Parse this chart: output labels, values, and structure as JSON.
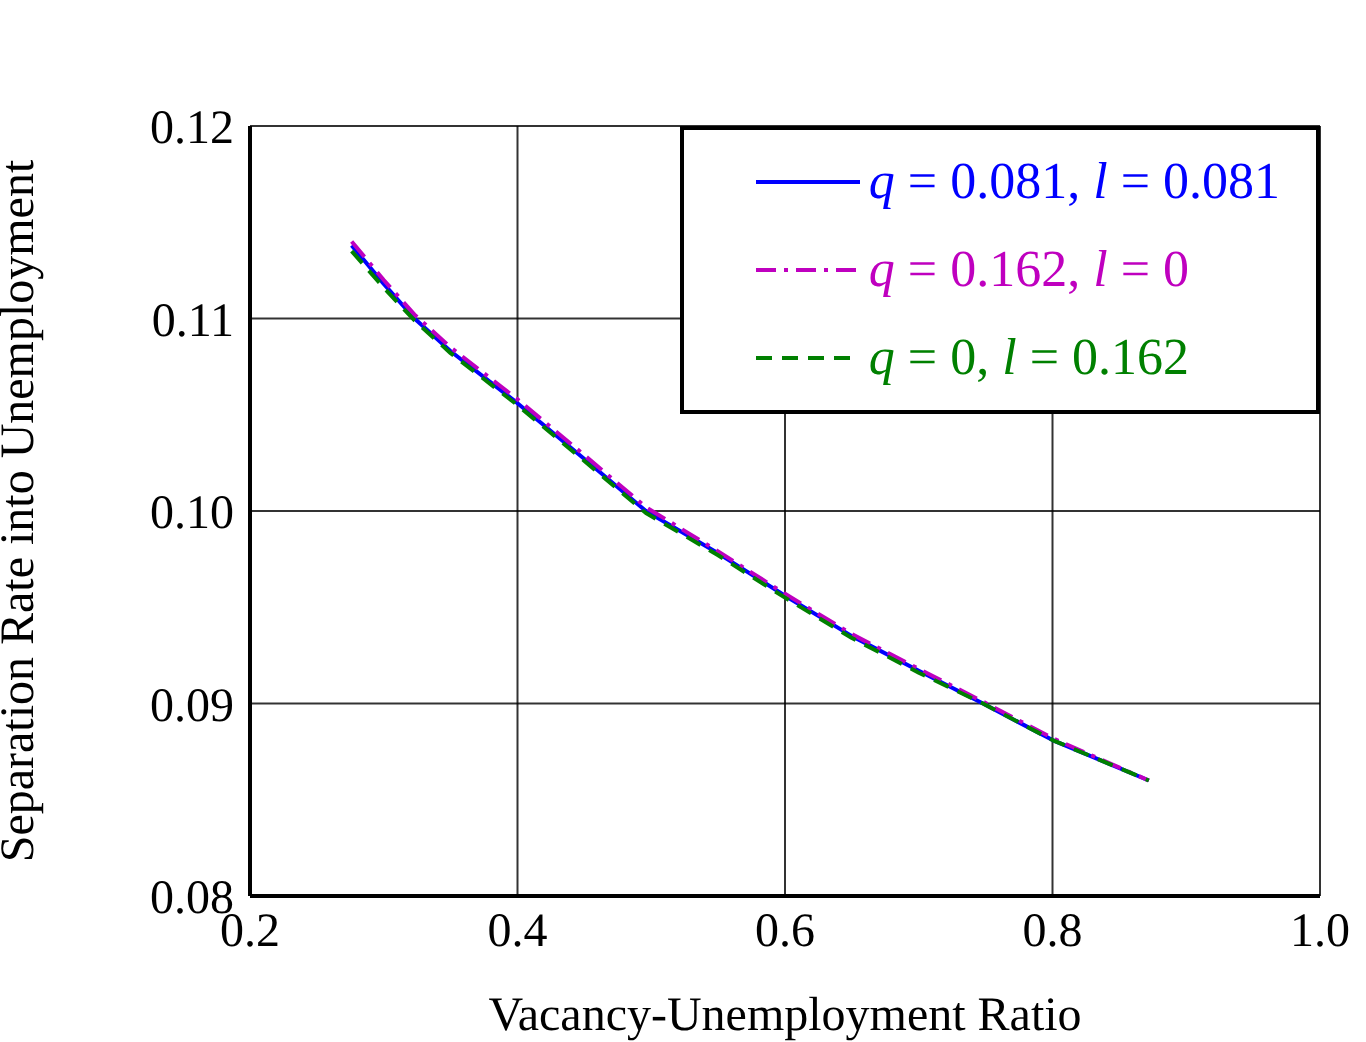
{
  "chart_data": {
    "type": "line",
    "xlabel": "Vacancy-Unemployment Ratio",
    "ylabel": "Separation Rate into Unemployment",
    "xlim": [
      0.2,
      1.0
    ],
    "xticks": [
      0.2,
      0.4,
      0.6,
      0.8,
      {
        "value": 1.0,
        "label": "1.0"
      }
    ],
    "ylim": [
      0.08,
      0.12
    ],
    "yticks": [
      0.08,
      0.09,
      {
        "value": 0.1,
        "label": "0.10"
      },
      0.11,
      0.12
    ],
    "grid": true,
    "legend": "top right",
    "marker": "none",
    "x": [
      0.276,
      0.3,
      0.323,
      0.35,
      0.4,
      0.45,
      0.496,
      0.55,
      0.6,
      0.65,
      0.7,
      0.748,
      0.8,
      0.872
    ],
    "series": [
      {
        "name": "q = 0.081, l = 0.081",
        "color": "#0000ff",
        "line_style": "solid",
        "values": [
          0.1138,
          0.1118,
          0.11,
          0.1083,
          0.1056,
          0.1027,
          0.1,
          0.0978,
          0.0956,
          0.0935,
          0.0917,
          0.09,
          0.0881,
          0.086
        ]
      },
      {
        "name": "q = 0.162, l = 0",
        "color": "#bf00bf",
        "line_style": "dashdot",
        "values": [
          0.114,
          0.112,
          0.1102,
          0.1085,
          0.1058,
          0.1029,
          0.1002,
          0.0979,
          0.0957,
          0.0936,
          0.0918,
          0.0901,
          0.0882,
          0.086
        ]
      },
      {
        "name": "q = 0, l = 0.162",
        "color": "#008000",
        "line_style": "dashed",
        "values": [
          0.1135,
          0.1116,
          0.1099,
          0.1082,
          0.1055,
          0.1026,
          0.0999,
          0.0977,
          0.0955,
          0.0934,
          0.0916,
          0.09,
          0.0881,
          0.086
        ]
      }
    ]
  }
}
